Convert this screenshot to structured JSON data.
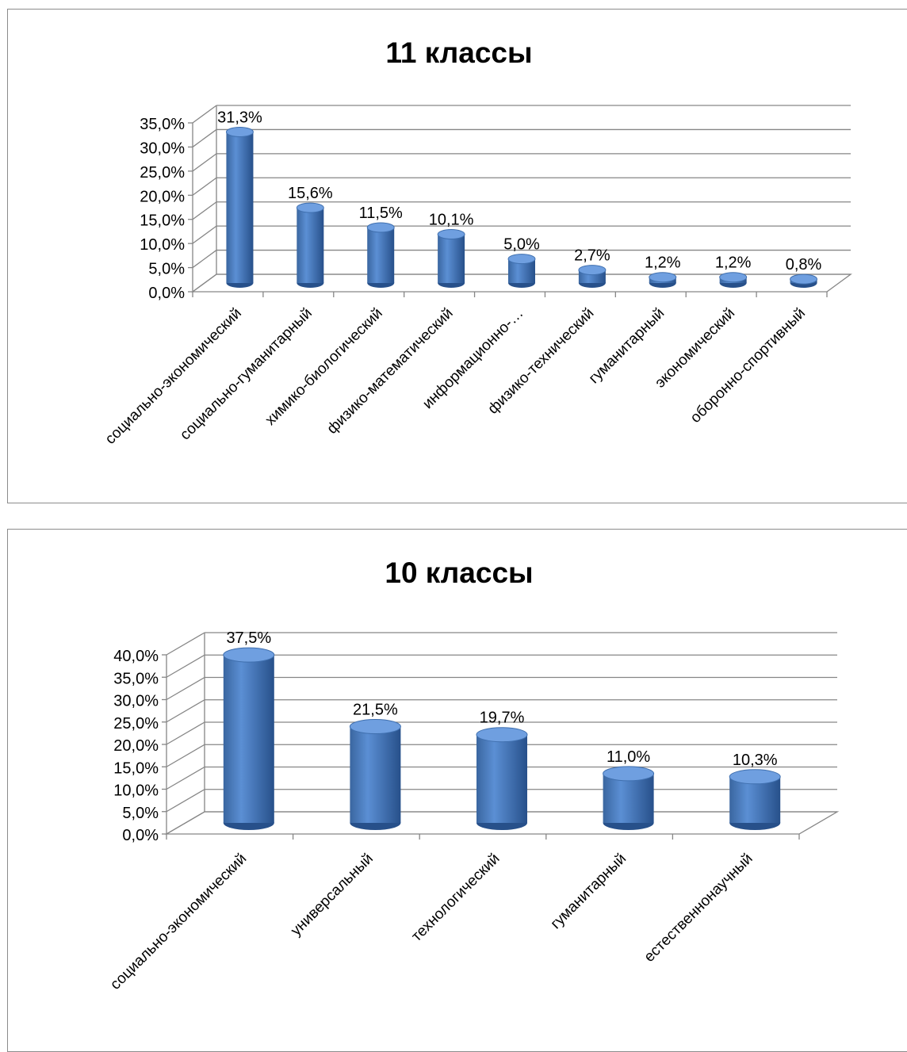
{
  "chart_data": [
    {
      "type": "bar",
      "title": "11 классы",
      "categories": [
        "социально-экономический",
        "социально-гуманитарный",
        "химико-биологический",
        "физико-математический",
        "информационно-…",
        "физико-технический",
        "гуманитарный",
        "экономический",
        "оборонно-спортивный"
      ],
      "values": [
        31.3,
        15.6,
        11.5,
        10.1,
        5.0,
        2.7,
        1.2,
        1.2,
        0.8
      ],
      "data_labels": [
        "31,3%",
        "15,6%",
        "11,5%",
        "10,1%",
        "5,0%",
        "2,7%",
        "1,2%",
        "1,2%",
        "0,8%"
      ],
      "ytick_labels": [
        "0,0%",
        "5,0%",
        "10,0%",
        "15,0%",
        "20,0%",
        "25,0%",
        "30,0%",
        "35,0%"
      ],
      "ylim": [
        0,
        35
      ],
      "grid": true,
      "legend": "none",
      "bar_color": "#4f81bd"
    },
    {
      "type": "bar",
      "title": "10 классы",
      "categories": [
        "социально-экономический",
        "универсальный",
        "технологический",
        "гуманитарный",
        "естественнонаучный"
      ],
      "values": [
        37.5,
        21.5,
        19.7,
        11.0,
        10.3
      ],
      "data_labels": [
        "37,5%",
        "21,5%",
        "19,7%",
        "11,0%",
        "10,3%"
      ],
      "ytick_labels": [
        "0,0%",
        "5,0%",
        "10,0%",
        "15,0%",
        "20,0%",
        "25,0%",
        "30,0%",
        "35,0%",
        "40,0%"
      ],
      "ylim": [
        0,
        40
      ],
      "grid": true,
      "legend": "none",
      "bar_color": "#4f81bd"
    }
  ]
}
